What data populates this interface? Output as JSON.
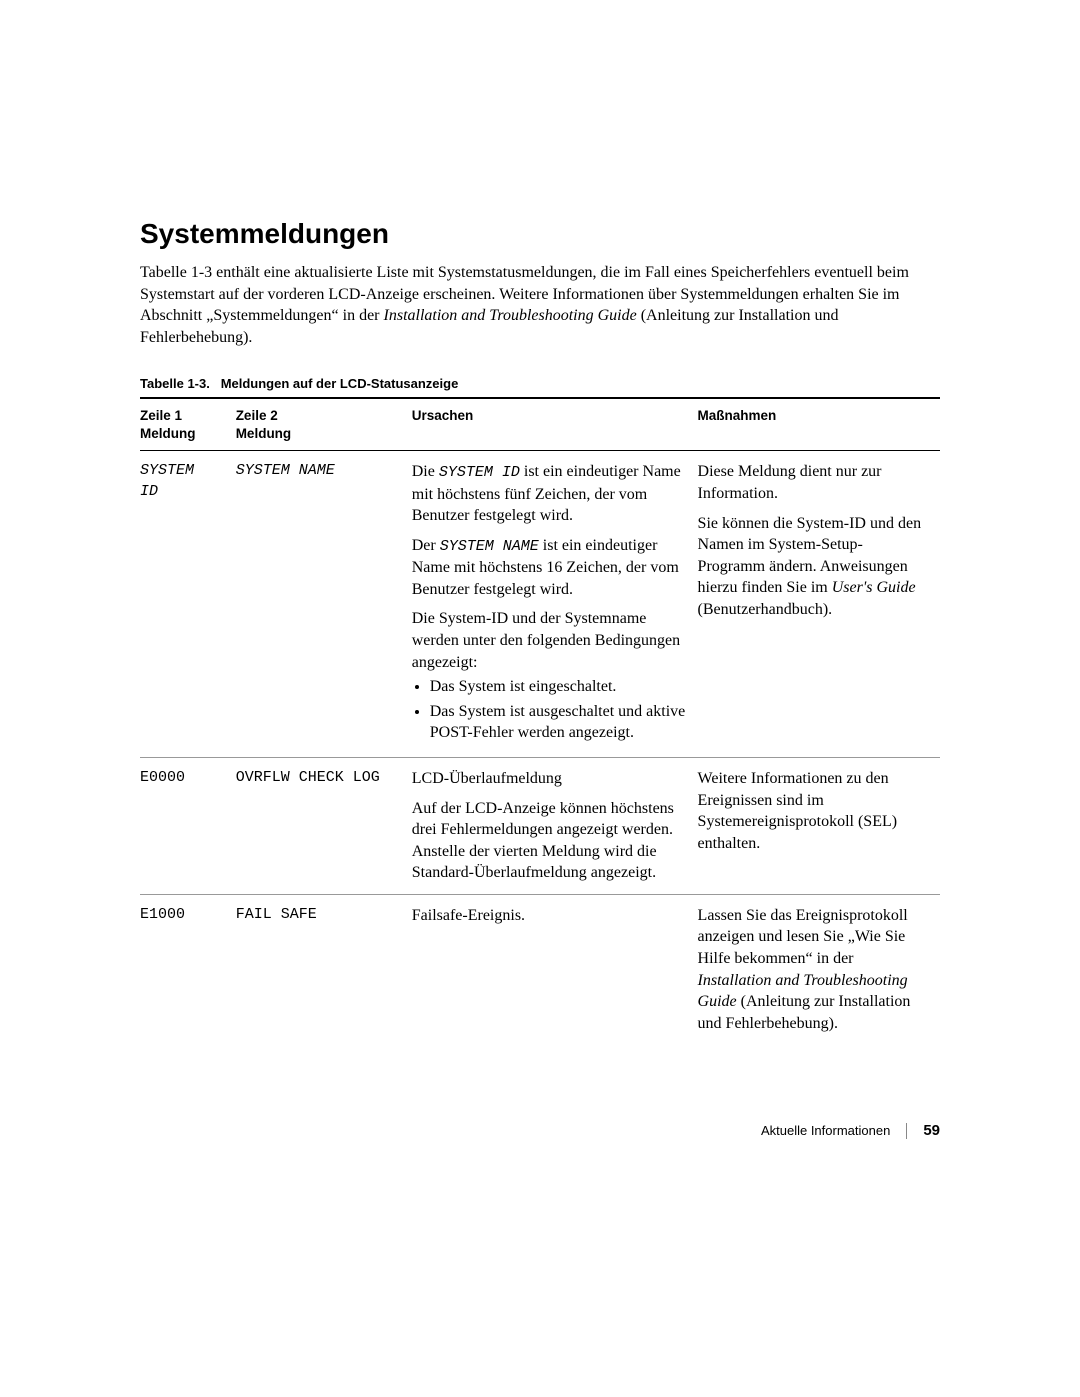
{
  "heading": "Systemmeldungen",
  "intro": {
    "part1": "Tabelle 1-3 enthält eine aktualisierte Liste mit Systemstatusmeldungen, die im Fall eines Speicherfehlers eventuell beim Systemstart auf der vorderen LCD-Anzeige erscheinen. Weitere Informationen über Systemmeldungen erhalten Sie im Abschnitt „Systemmeldungen“ in der ",
    "italic1": "Installation and Troubleshooting Guide",
    "part2": " (Anleitung zur Installation und Fehlerbehebung)."
  },
  "tableCaptionPrefix": "Tabelle 1-3.",
  "tableCaptionText": "Meldungen auf der LCD-Statusanzeige",
  "headers": {
    "c1a": "Zeile 1",
    "c1b": "Meldung",
    "c2a": "Zeile 2",
    "c2b": "Meldung",
    "c3": "Ursachen",
    "c4": "Maßnahmen"
  },
  "rows": {
    "r1": {
      "c1a": "SYSTEM",
      "c1b": "ID",
      "c2": "SYSTEM NAME",
      "c3": {
        "p1a": "Die ",
        "p1mono": "SYSTEM ID",
        "p1b": " ist ein eindeutiger Name mit höchstens fünf Zeichen, der vom Benutzer festgelegt wird.",
        "p2a": "Der ",
        "p2mono": "SYSTEM NAME",
        "p2b": " ist ein eindeutiger Name mit höchstens 16 Zeichen, der vom Benutzer festgelegt wird.",
        "p3": "Die System-ID und der Systemname werden unter den folgenden Bedingungen angezeigt:",
        "b1": "Das System ist eingeschaltet.",
        "b2": "Das System ist ausgeschaltet und aktive POST-Fehler werden angezeigt."
      },
      "c4": {
        "p1": "Diese Meldung dient nur zur Information.",
        "p2a": "Sie können die System-ID und den Namen im System-Setup-Programm ändern. Anweisungen hierzu finden Sie im ",
        "p2italic": "User's Guide",
        "p2b": " (Benutzerhandbuch)."
      }
    },
    "r2": {
      "c1": "E0000",
      "c2": "OVRFLW CHECK LOG",
      "c3": {
        "p1": "LCD-Überlaufmeldung",
        "p2": "Auf der LCD-Anzeige können höchstens drei Fehlermeldungen angezeigt werden. Anstelle der vierten Meldung wird die Standard-Überlaufmeldung angezeigt."
      },
      "c4": "Weitere Informationen zu den Ereignissen sind im Systemereignisprotokoll (SEL) enthalten."
    },
    "r3": {
      "c1": "E1000",
      "c2": "FAIL SAFE",
      "c3": "Failsafe-Ereignis.",
      "c4": {
        "p1a": "Lassen Sie das Ereignisprotokoll anzeigen und lesen Sie „Wie Sie Hilfe bekommen“  in der ",
        "p1italic": "Installation and Troubleshooting Guide",
        "p1b": " (Anleitung zur Installation und Fehlerbehebung)."
      }
    }
  },
  "footer": {
    "section": "Aktuelle Informationen",
    "page": "59"
  }
}
